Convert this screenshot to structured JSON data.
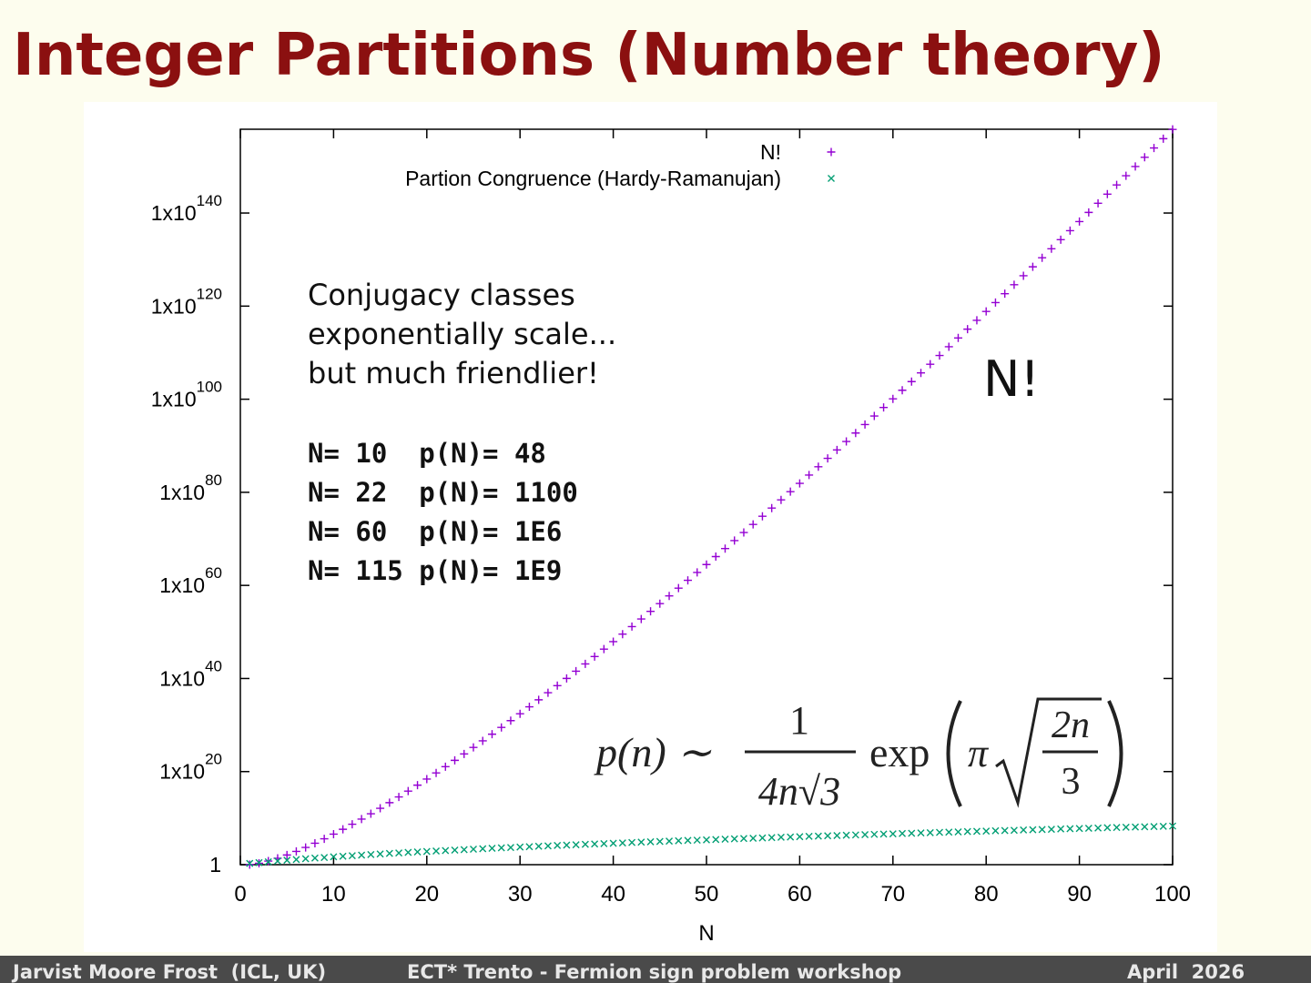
{
  "slide_title": "Integer Partitions (Number theory)",
  "footer": {
    "author": "Jarvist Moore Frost  (ICL, UK)",
    "event": "ECT* Trento - Fermion sign problem workshop",
    "date": "April  2026"
  },
  "notes": {
    "text_lines": [
      "Conjugacy classes",
      "exponentially scale...",
      "but much friendlier!"
    ],
    "table_lines": [
      "N= 10  p(N)= 48",
      "N= 22  p(N)= 1100",
      "N= 60  p(N)= 1E6",
      "N= 115 p(N)= 1E9"
    ],
    "big_label": "N!",
    "formula": {
      "lhs": "p(n) ∼",
      "numerator": "1",
      "denominator": "4n√3",
      "func": "exp",
      "pi": "π",
      "inner_numerator": "2n",
      "inner_denominator": "3"
    }
  },
  "chart_data": {
    "type": "scatter",
    "xlabel": "N",
    "log_y": true,
    "grid": false,
    "legend": "top-right",
    "xlim": [
      0,
      100
    ],
    "xticks": [
      0,
      10,
      20,
      30,
      40,
      50,
      60,
      70,
      80,
      90,
      100
    ],
    "ylim": [
      1,
      1e+158
    ],
    "yticks": [
      1,
      {
        "value": 1e+20,
        "label": "1x10",
        "sup": "20"
      },
      {
        "value": 1e+40,
        "label": "1x10",
        "sup": "40"
      },
      {
        "value": 1e+60,
        "label": "1x10",
        "sup": "60"
      },
      {
        "value": 1e+80,
        "label": "1x10",
        "sup": "80"
      },
      {
        "value": 1e+100,
        "label": "1x10",
        "sup": "100"
      },
      {
        "value": 1e+120,
        "label": "1x10",
        "sup": "120"
      },
      {
        "value": 1e+140,
        "label": "1x10",
        "sup": "140"
      }
    ],
    "x": [
      1,
      2,
      3,
      4,
      5,
      6,
      7,
      8,
      9,
      10,
      11,
      12,
      13,
      14,
      15,
      16,
      17,
      18,
      19,
      20,
      21,
      22,
      23,
      24,
      25,
      26,
      27,
      28,
      29,
      30,
      31,
      32,
      33,
      34,
      35,
      36,
      37,
      38,
      39,
      40,
      41,
      42,
      43,
      44,
      45,
      46,
      47,
      48,
      49,
      50,
      51,
      52,
      53,
      54,
      55,
      56,
      57,
      58,
      59,
      60,
      61,
      62,
      63,
      64,
      65,
      66,
      67,
      68,
      69,
      70,
      71,
      72,
      73,
      74,
      75,
      76,
      77,
      78,
      79,
      80,
      81,
      82,
      83,
      84,
      85,
      86,
      87,
      88,
      89,
      90,
      91,
      92,
      93,
      94,
      95,
      96,
      97,
      98,
      99,
      100
    ],
    "series": [
      {
        "name": "N!",
        "color": "#9400d3",
        "marker": "plus",
        "values": [
          1,
          2,
          6,
          24,
          120,
          720,
          5040,
          40320,
          362880,
          3628800,
          39916800,
          479001600,
          6227020800,
          87178291200,
          1307674368000.0,
          20922789888000.0,
          355687428096000.0,
          6402373705728000.0,
          1.21645100408832e+17,
          2.43290200817664e+18,
          5.109e+19,
          1.124e+21,
          2.585e+22,
          6.204e+23,
          1.551e+25,
          4.033e+26,
          1.089e+28,
          3.049e+29,
          8.842e+30,
          2.653e+32,
          8.223e+33,
          2.631e+35,
          8.683e+36,
          2.952e+38,
          1.033e+40,
          3.72e+41,
          1.376e+43,
          5.23e+44,
          2.04e+46,
          8.159e+47,
          3.345e+49,
          1.405e+51,
          6.042e+52,
          2.658e+54,
          1.196e+56,
          5.503e+57,
          2.586e+59,
          1.241e+61,
          6.083e+62,
          3.041e+64,
          1.551e+66,
          8.066e+67,
          4.275e+69,
          2.308e+71,
          1.27e+73,
          7.11e+74,
          4.053e+76,
          2.351e+78,
          1.387e+80,
          8.321e+81,
          5.076e+83,
          3.147e+85,
          1.983e+87,
          1.269e+89,
          8.248e+90,
          5.443e+92,
          3.647e+94,
          2.48e+96,
          1.711e+98,
          1.198e+100,
          8.505e+101,
          6.123e+103,
          4.47e+105,
          3.308e+107,
          2.481e+109,
          1.886e+111,
          1.452e+113,
          1.132e+115,
          8.946e+116,
          7.157e+118,
          5.797e+120,
          4.754e+122,
          3.946e+124,
          3.314e+126,
          2.817e+128,
          2.423e+130,
          2.108e+132,
          1.855e+134,
          1.651e+136,
          1.486e+138,
          1.352e+140,
          1.244e+142,
          1.157e+144,
          1.088e+146,
          1.033e+148,
          9.917e+149,
          9.619e+151,
          9.427e+153,
          9.333e+155,
          9.333e+157
        ]
      },
      {
        "name": "Partion Congruence (Hardy-Ramanujan)",
        "color": "#009e73",
        "marker": "cross",
        "values": [
          1.88,
          2.72,
          4.09,
          6.1,
          8.94,
          12.9,
          18.3,
          25.5,
          35.3,
          48.1,
          65.0,
          86.9,
          115,
          152,
          199,
          258,
          333,
          427,
          545,
          692,
          876,
          1100,
          1380,
          1720,
          2150,
          2660,
          3290,
          4050,
          4970,
          6080,
          7420,
          9040,
          10980,
          13290,
          16060,
          19380,
          23310,
          27980,
          33530,
          40090,
          47830,
          57000,
          67760,
          80440,
          95330,
          112800,
          133200,
          157100,
          185100,
          217700,
          256000.0,
          300000.0,
          351000.0,
          411000.0,
          479000.0,
          559000.0,
          652000.0,
          759000.0,
          882000.0,
          1020000.0,
          1190000.0,
          1380000.0,
          1590000.0,
          1840000.0,
          2130000.0,
          2460000.0,
          2830000.0,
          3260000.0,
          3750000.0,
          4310000.0,
          4950000.0,
          5690000.0,
          6520000.0,
          7470000.0,
          8550000.0,
          9780000.0,
          11200000.0,
          12800000.0,
          14600000.0,
          16600000.0,
          18900000.0,
          21500000.0,
          24500000.0,
          27900000.0,
          31700000.0,
          36000000.0,
          40800000.0,
          46300000.0,
          52400000.0,
          59400000.0,
          67200000.0,
          76000000.0,
          85900000.0,
          97100000.0,
          110000000.0,
          124000000.0,
          139000000.0,
          157000000.0,
          177000000.0,
          199000000.0
        ]
      }
    ]
  }
}
